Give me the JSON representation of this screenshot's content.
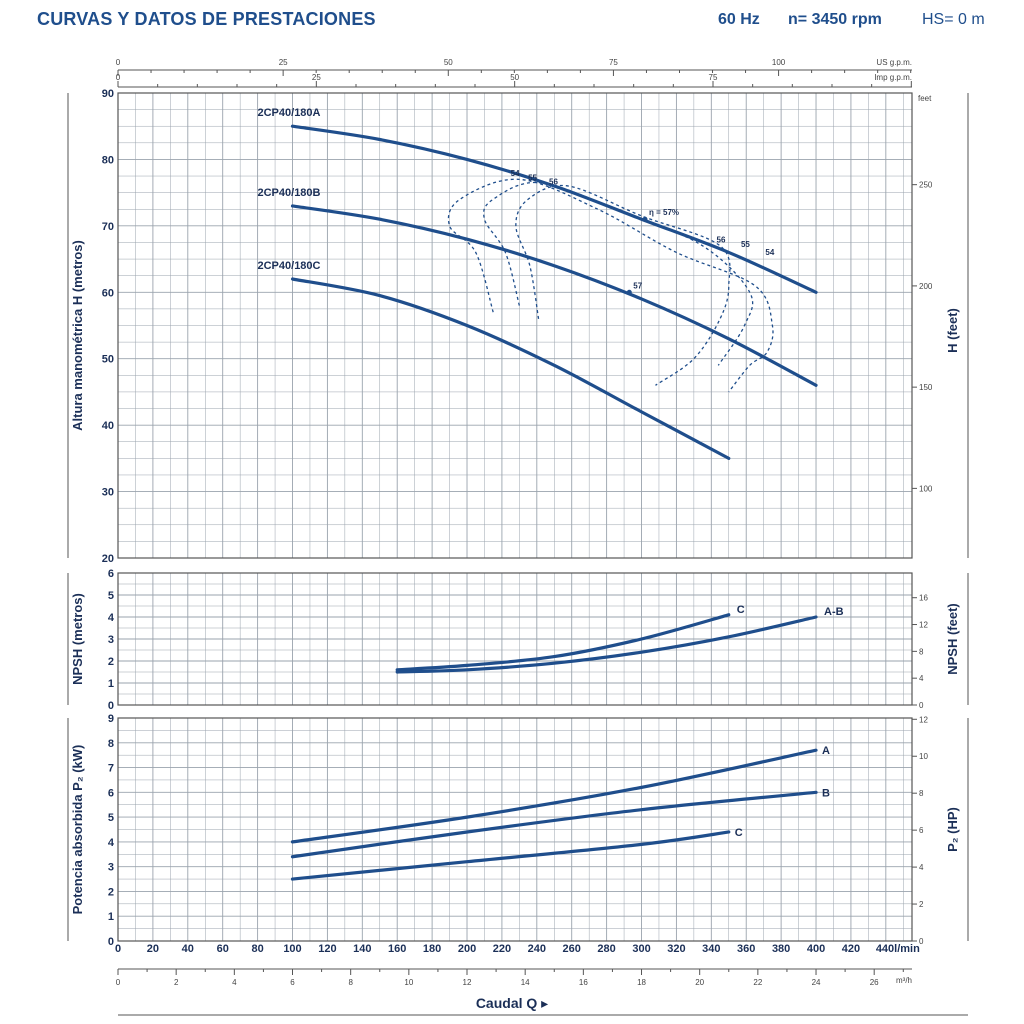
{
  "header": {
    "title": "CURVAS Y DATOS DE PRESTACIONES",
    "frequency": "60 Hz",
    "speed": "n= 3450 rpm",
    "hs": "HS= 0 m"
  },
  "colors": {
    "curve": "#1f4e8c",
    "grid": "#9aa3ad",
    "text": "#1b2f57"
  },
  "chart_data": [
    {
      "id": "head",
      "type": "line",
      "ylabel": "Altura manométrica H (metros)",
      "ylabel_right": "H (feet)",
      "ylim": [
        20,
        90
      ],
      "yticks": [
        20,
        30,
        40,
        50,
        60,
        70,
        80,
        90
      ],
      "right_unit": "feet",
      "right_ticks": [
        100,
        150,
        200,
        250
      ],
      "top_axis_1": {
        "unit": "US g.p.m.",
        "ticks": [
          0,
          25,
          50,
          75,
          100
        ]
      },
      "top_axis_2": {
        "unit": "Imp g.p.m.",
        "ticks": [
          0,
          25,
          50,
          75
        ]
      },
      "series": [
        {
          "name": "2CP40/180A",
          "x": [
            100,
            150,
            200,
            250,
            300,
            350,
            400
          ],
          "y": [
            85,
            83,
            80,
            76,
            71,
            66,
            60
          ]
        },
        {
          "name": "2CP40/180B",
          "x": [
            100,
            150,
            200,
            250,
            300,
            350,
            400
          ],
          "y": [
            73,
            71,
            68,
            64,
            59,
            53,
            46
          ]
        },
        {
          "name": "2CP40/180C",
          "x": [
            100,
            150,
            200,
            250,
            300,
            350
          ],
          "y": [
            62,
            59.5,
            55,
            49,
            42,
            35
          ]
        }
      ],
      "efficiency_labels": [
        "54",
        "55",
        "56",
        "57",
        "η = 57%",
        "56",
        "55",
        "54"
      ],
      "efficiency_contours": [
        {
          "label": "54",
          "x": [
            215,
            205,
            190,
            196,
            230,
            275,
            320,
            365,
            375,
            372,
            362,
            350
          ],
          "y": [
            57,
            66,
            70,
            74,
            77,
            72.5,
            66,
            61,
            55,
            51,
            49,
            45
          ]
        },
        {
          "label": "55",
          "x": [
            230,
            222,
            210,
            215,
            242,
            290,
            335,
            362,
            359,
            344
          ],
          "y": [
            58,
            66,
            71,
            74,
            76.5,
            72,
            67,
            60,
            55,
            49
          ]
        },
        {
          "label": "56",
          "x": [
            241,
            236,
            228,
            235,
            258,
            300,
            345,
            350,
            345,
            330,
            308
          ],
          "y": [
            56,
            64,
            70,
            74,
            76,
            71.5,
            67,
            61,
            56,
            50,
            46
          ]
        }
      ],
      "efficiency_points": [
        {
          "label": "57",
          "x": 293,
          "y": 60
        },
        {
          "label": "η = 57%",
          "x": 302,
          "y": 71
        }
      ]
    },
    {
      "id": "npsh",
      "type": "line",
      "ylabel": "NPSH (metros)",
      "ylabel_right": "NPSH (feet)",
      "ylim": [
        0,
        6
      ],
      "yticks": [
        0,
        1,
        2,
        3,
        4,
        5,
        6
      ],
      "right_ticks": [
        0,
        4,
        8,
        12,
        16
      ],
      "series": [
        {
          "name": "C",
          "x": [
            160,
            200,
            250,
            300,
            350
          ],
          "y": [
            1.6,
            1.8,
            2.2,
            3.0,
            4.1
          ]
        },
        {
          "name": "A-B",
          "x": [
            160,
            200,
            250,
            300,
            350,
            400
          ],
          "y": [
            1.5,
            1.6,
            1.9,
            2.4,
            3.1,
            4.0
          ]
        }
      ]
    },
    {
      "id": "power",
      "type": "line",
      "ylabel": "Potencia absorbida P₂ (kW)",
      "ylabel_right": "P₂ (HP)",
      "ylim": [
        0,
        9
      ],
      "yticks": [
        0,
        1,
        2,
        3,
        4,
        5,
        6,
        7,
        8,
        9
      ],
      "right_ticks": [
        0,
        2,
        4,
        6,
        8,
        10,
        12
      ],
      "series": [
        {
          "name": "A",
          "x": [
            100,
            200,
            300,
            400
          ],
          "y": [
            4.0,
            5.0,
            6.2,
            7.7
          ]
        },
        {
          "name": "B",
          "x": [
            100,
            200,
            300,
            400
          ],
          "y": [
            3.4,
            4.4,
            5.3,
            6.0
          ]
        },
        {
          "name": "C",
          "x": [
            100,
            200,
            300,
            350
          ],
          "y": [
            2.5,
            3.2,
            3.9,
            4.4
          ]
        }
      ]
    }
  ],
  "x_axis": {
    "label": "Caudal Q",
    "unit_primary": "l/min",
    "ticks_primary": [
      0,
      20,
      40,
      60,
      80,
      100,
      120,
      140,
      160,
      180,
      200,
      220,
      240,
      260,
      280,
      300,
      320,
      340,
      360,
      380,
      400,
      420,
      440
    ],
    "unit_secondary": "m³/h",
    "ticks_secondary": [
      0,
      2,
      4,
      6,
      8,
      10,
      12,
      14,
      16,
      18,
      20,
      22,
      24,
      26
    ]
  }
}
